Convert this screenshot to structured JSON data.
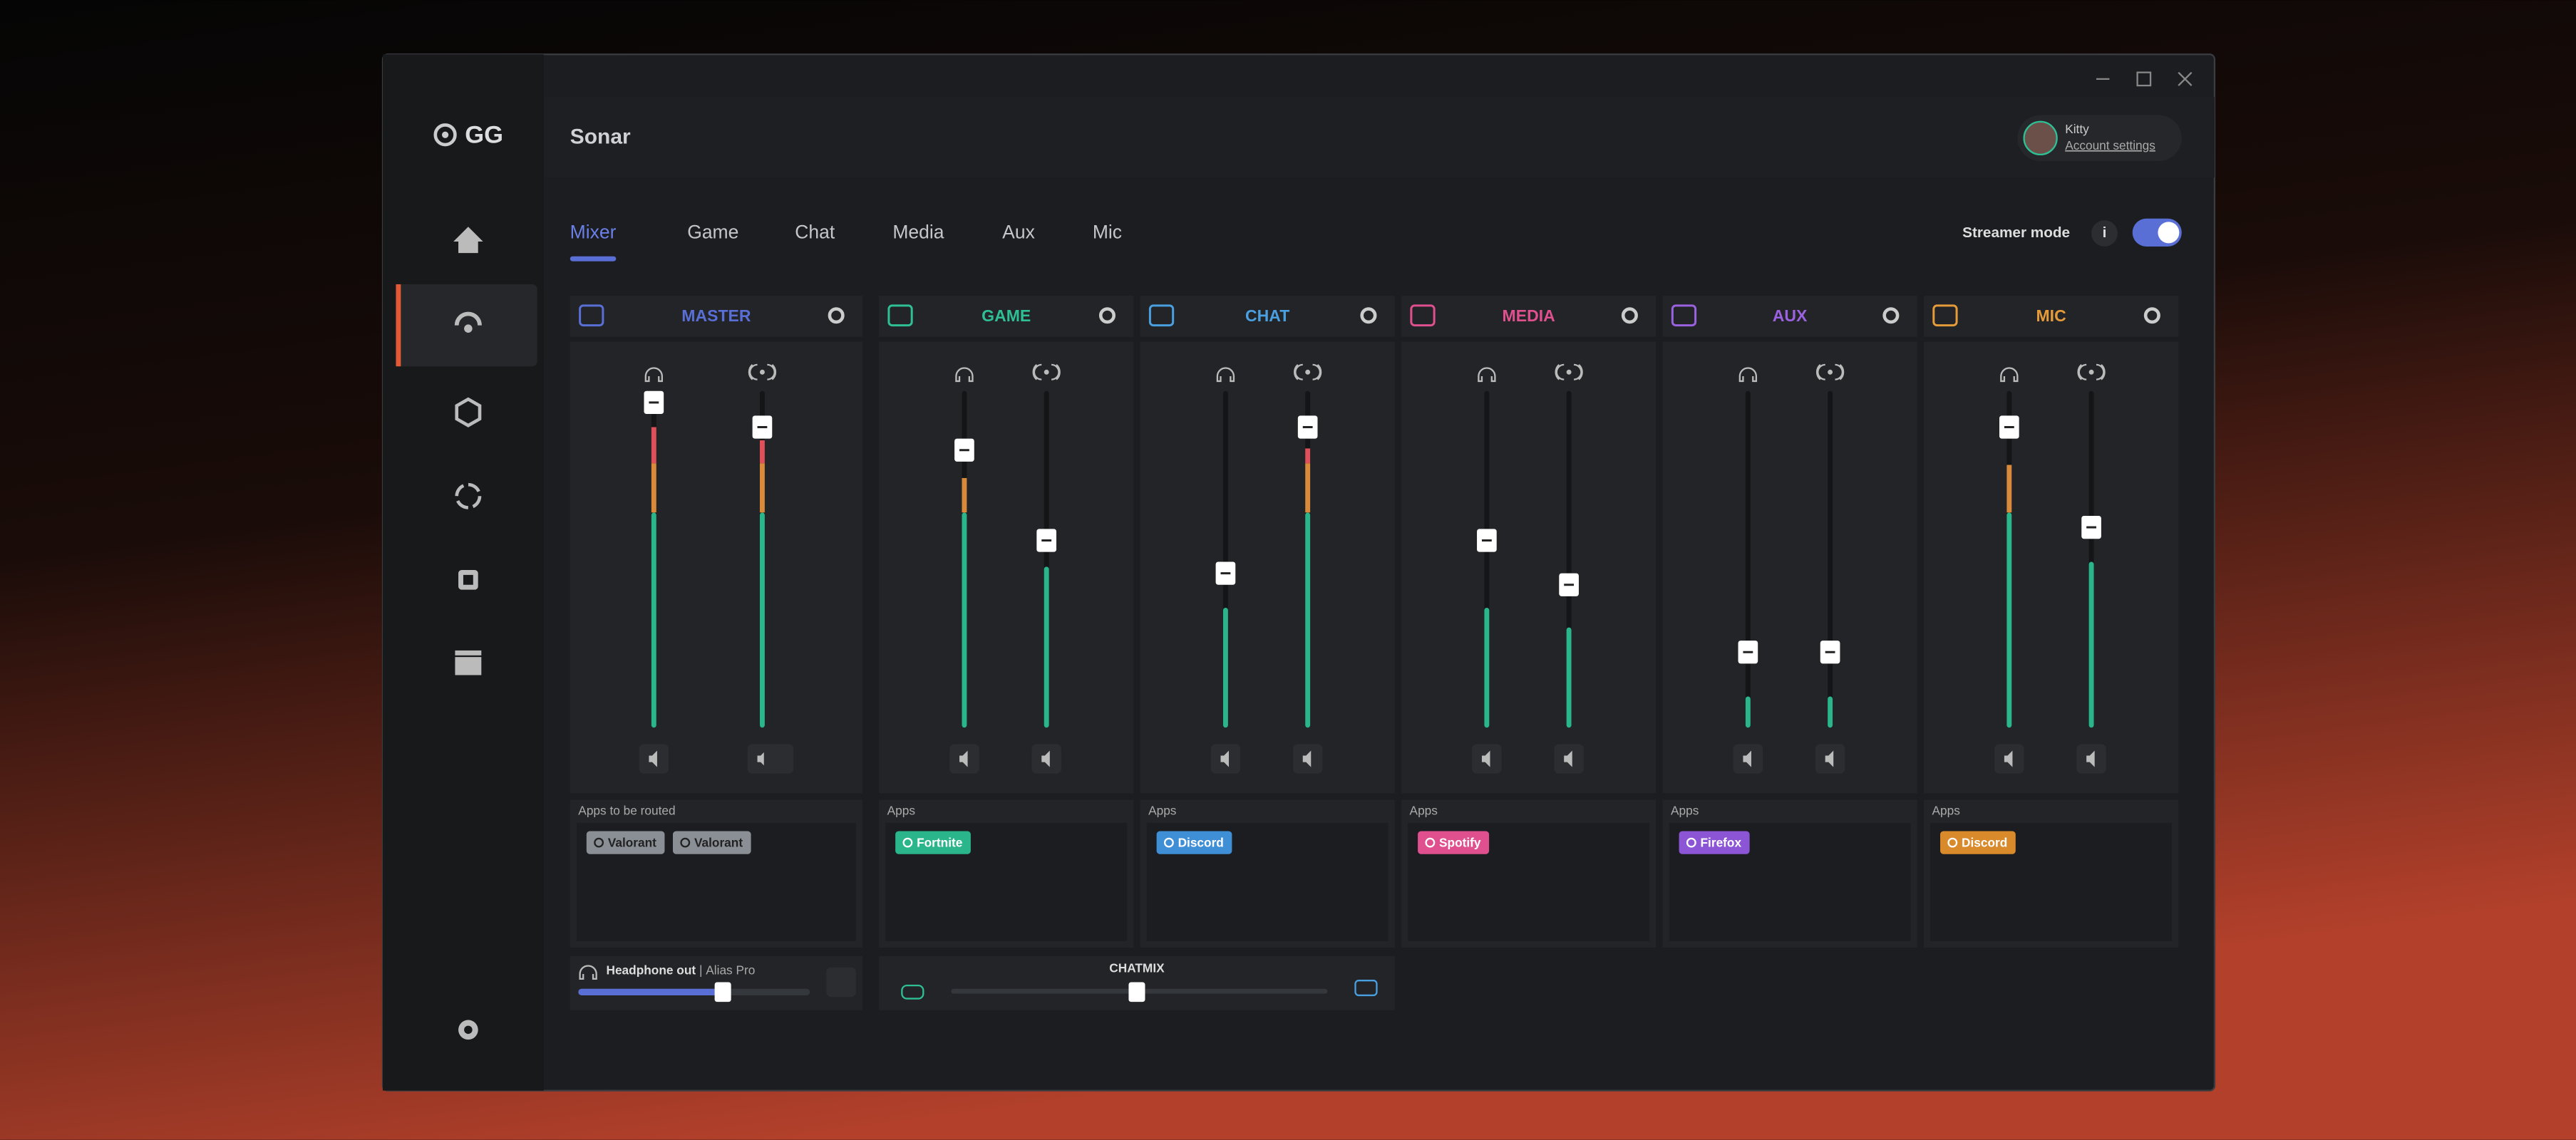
{
  "brand": "GG",
  "header": {
    "title": "Sonar",
    "user": "Kitty",
    "account_link": "Account settings"
  },
  "tabs": [
    "Mixer",
    "Game",
    "Chat",
    "Media",
    "Aux",
    "Mic"
  ],
  "streamer_mode": {
    "label": "Streamer mode",
    "info": "i"
  },
  "channels": [
    {
      "name": "MASTER",
      "apps_label": "Apps to be routed",
      "apps": [
        "Valorant",
        "Valorant"
      ]
    },
    {
      "name": "GAME",
      "apps_label": "Apps",
      "apps": [
        "Fortnite"
      ]
    },
    {
      "name": "CHAT",
      "apps_label": "Apps",
      "apps": [
        "Discord"
      ]
    },
    {
      "name": "MEDIA",
      "apps_label": "Apps",
      "apps": [
        "Spotify"
      ]
    },
    {
      "name": "AUX",
      "apps_label": "Apps",
      "apps": [
        "Firefox"
      ]
    },
    {
      "name": "MIC",
      "apps_label": "Apps",
      "apps": [
        "Discord"
      ]
    }
  ],
  "output": {
    "label": "Headphone out",
    "separator": "|",
    "device": "Alias Pro"
  },
  "chatmix": {
    "label": "CHATMIX"
  }
}
